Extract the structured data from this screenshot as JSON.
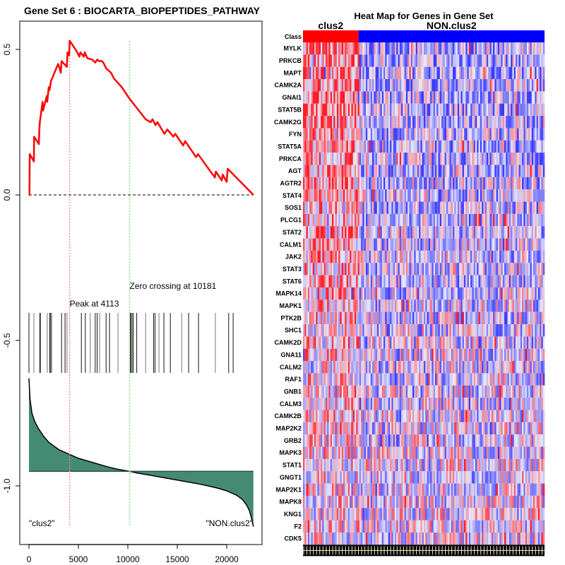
{
  "chart_data": [
    {
      "type": "line",
      "title": "Gene Set  6 : BIOCARTA_BIOPEPTIDES_PATHWAY",
      "xlabel": "",
      "ylabel": "",
      "xlim": [
        -3000,
        24500
      ],
      "ylim": [
        -1.2,
        0.74
      ],
      "x_ticks": [
        0,
        5000,
        10000,
        15000,
        20000
      ],
      "x_tick_labels": [
        "0",
        "5000",
        "10000",
        "15000",
        "20000"
      ],
      "y_ticks": [
        0.5,
        0.0,
        -0.5,
        -1.0
      ],
      "y_tick_labels": [
        "0.5",
        "0.0",
        "-0.5",
        "-1.0"
      ],
      "grid": false,
      "running_enrichment_score": {
        "color": "#ff0000",
        "x": [
          0,
          50,
          80,
          500,
          520,
          1000,
          1040,
          1100,
          1380,
          1430,
          1800,
          1850,
          2000,
          2080,
          2220,
          2270,
          2950,
          3050,
          3220,
          3300,
          3830,
          3900,
          4070,
          4113,
          4800,
          5100,
          5200,
          5550,
          5650,
          5900,
          6400,
          6700,
          6900,
          7100,
          7400,
          7600,
          7800,
          8300,
          8600,
          9400,
          10181,
          11000,
          11800,
          12300,
          12500,
          12800,
          13000,
          13700,
          14000,
          14600,
          14800,
          15600,
          15800,
          16900,
          17100,
          18800,
          18900,
          19500,
          19600,
          20000,
          20100,
          22700
        ],
        "y": [
          0.0,
          0.0,
          0.14,
          0.115,
          0.2,
          0.175,
          0.22,
          0.25,
          0.32,
          0.29,
          0.34,
          0.32,
          0.37,
          0.36,
          0.39,
          0.395,
          0.45,
          0.44,
          0.42,
          0.46,
          0.44,
          0.49,
          0.48,
          0.53,
          0.495,
          0.475,
          0.49,
          0.475,
          0.49,
          0.47,
          0.465,
          0.455,
          0.465,
          0.46,
          0.46,
          0.45,
          0.435,
          0.42,
          0.4,
          0.37,
          0.33,
          0.295,
          0.26,
          0.25,
          0.26,
          0.24,
          0.25,
          0.21,
          0.225,
          0.2,
          0.21,
          0.17,
          0.185,
          0.13,
          0.14,
          0.06,
          0.08,
          0.05,
          0.07,
          0.045,
          0.09,
          0.0
        ]
      },
      "zero_line": {
        "y": 0.0,
        "style": "dashed",
        "color": "#000000"
      },
      "peak": {
        "x": 4113,
        "label": "Peak at 4113",
        "color": "#ff8080"
      },
      "zero_crossing": {
        "x": 10181,
        "label": "Zero crossing at 10181",
        "color": "#80e080"
      },
      "hit_positions": [
        0,
        500,
        1100,
        1150,
        1850,
        2100,
        2200,
        2300,
        3300,
        3650,
        3850,
        5300,
        5700,
        6200,
        6700,
        6900,
        7150,
        7800,
        8150,
        9000,
        10250,
        10350,
        10450,
        10550,
        10900,
        11800,
        12600,
        12750,
        13150,
        13650,
        14300,
        15450,
        16150,
        17150,
        18850,
        20200,
        20650
      ],
      "ranked_metric": {
        "color": "#458b74",
        "baseline": -0.95,
        "x": [
          0,
          100,
          300,
          600,
          1000,
          1500,
          2000,
          3000,
          4000,
          5000,
          6000,
          7000,
          8000,
          9000,
          10181,
          11000,
          12000,
          13000,
          14000,
          15000,
          16000,
          17000,
          18000,
          19000,
          20000,
          21000,
          21600,
          22000,
          22300,
          22500,
          22700
        ],
        "y": [
          -0.63,
          -0.7,
          -0.75,
          -0.78,
          -0.805,
          -0.83,
          -0.85,
          -0.875,
          -0.89,
          -0.905,
          -0.915,
          -0.925,
          -0.935,
          -0.943,
          -0.95,
          -0.956,
          -0.962,
          -0.968,
          -0.974,
          -0.98,
          -0.986,
          -0.992,
          -0.999,
          -1.007,
          -1.017,
          -1.032,
          -1.047,
          -1.065,
          -1.085,
          -1.11,
          -1.14
        ]
      },
      "left_class_label": "\"clus2\"",
      "right_class_label": "\"NON.clus2\""
    },
    {
      "type": "heatmap",
      "title": "Heat Map for Genes in Gene Set",
      "class_row_label": "Class",
      "classes": [
        {
          "name": "clus2",
          "color": "#ff0000",
          "fraction": 0.23
        },
        {
          "name": "NON.clus2",
          "color": "#0000ff",
          "fraction": 0.77
        }
      ],
      "genes": [
        "MYLK",
        "PRKCB",
        "MAPT",
        "CAMK2A",
        "GNAI1",
        "STAT5B",
        "CAMK2G",
        "FYN",
        "STAT5A",
        "PRKCA",
        "AGT",
        "AGTR2",
        "STAT4",
        "SOS1",
        "PLCG1",
        "STAT2",
        "CALM1",
        "JAK2",
        "STAT3",
        "STAT6",
        "MAPK14",
        "MAPK1",
        "PTK2B",
        "SHC1",
        "CAMK2D",
        "GNA11",
        "CALM2",
        "RAF1",
        "GNB1",
        "CALM3",
        "CAMK2B",
        "MAP2K2",
        "GRB2",
        "MAPK3",
        "STAT1",
        "GNGT1",
        "MAP2K1",
        "MAPK8",
        "KNG1",
        "F2",
        "CDK5"
      ],
      "n_samples": 150,
      "colormap": {
        "low": "#0000ff",
        "mid": "#e8e8f8",
        "high": "#ff0000"
      },
      "value_range": [
        -3,
        3
      ]
    }
  ]
}
